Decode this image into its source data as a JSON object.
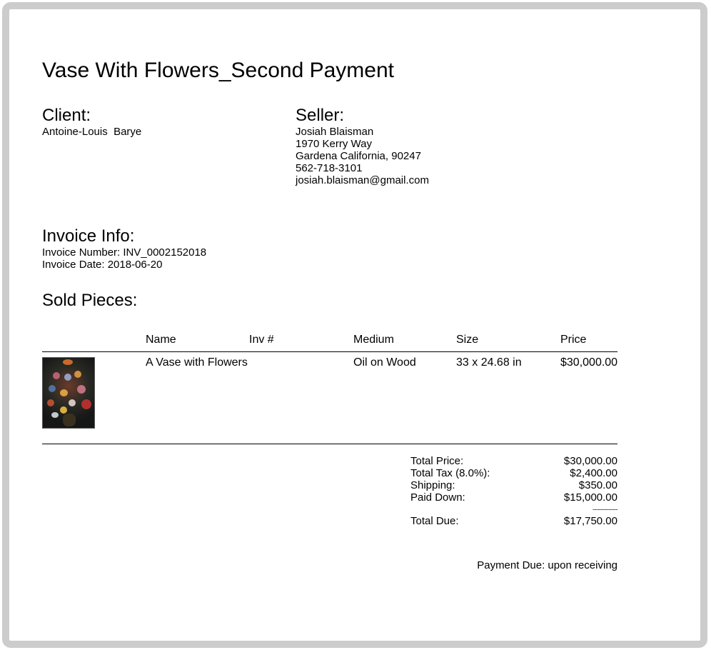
{
  "title": "Vase With Flowers_Second Payment",
  "client": {
    "heading": "Client:",
    "name": "Antoine-Louis  Barye"
  },
  "seller": {
    "heading": "Seller:",
    "name": "Josiah Blaisman",
    "address1": "1970 Kerry Way",
    "address2": "Gardena California, 90247",
    "phone": "562-718-3101",
    "email": "josiah.blaisman@gmail.com"
  },
  "invoice": {
    "heading": "Invoice Info:",
    "number": "Invoice Number: INV_0002152018",
    "date": "Invoice Date: 2018-06-20"
  },
  "sold": {
    "heading": "Sold Pieces:",
    "columns": [
      "Name",
      "Inv #",
      "Medium",
      "Size",
      "Price"
    ],
    "rows": [
      {
        "name": "A Vase with Flowers",
        "inv": "",
        "medium": "Oil on Wood",
        "size": "33 x 24.68 in",
        "price": "$30,000.00",
        "image": "vase-with-flowers-painting"
      }
    ]
  },
  "totals": {
    "total_price_label": "Total Price:",
    "total_price": "$30,000.00",
    "tax_label": "Total Tax (8.0%):",
    "tax": "$2,400.00",
    "shipping_label": "Shipping:",
    "shipping": "$350.00",
    "paid_label": "Paid Down:",
    "paid": "$15,000.00",
    "separator": "--------------",
    "due_label": "Total Due:",
    "due": "$17,750.00"
  },
  "payment_due": "Payment Due: upon receiving",
  "colors": {
    "frame": "#cccccc"
  }
}
